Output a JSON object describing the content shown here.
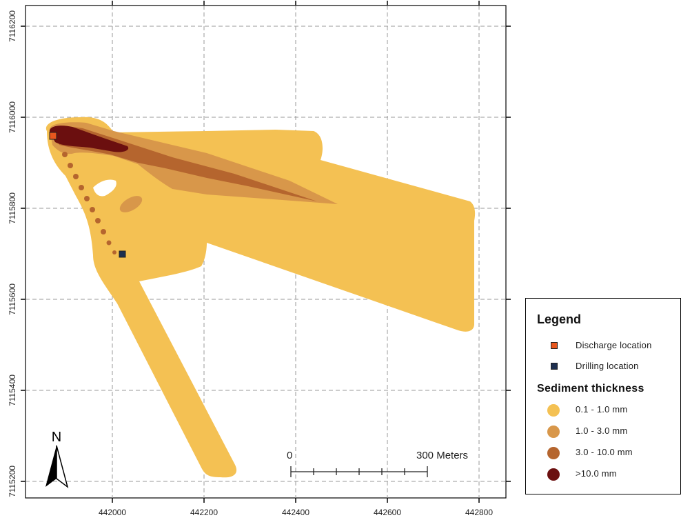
{
  "map": {
    "x_ticks": [
      "442000",
      "442200",
      "442400",
      "442600",
      "442800"
    ],
    "y_ticks": [
      "7116200",
      "7116000",
      "7115800",
      "7115600",
      "7115400",
      "7115200"
    ],
    "colors": {
      "thickness_0_1_1": "#f4c153",
      "thickness_1_3": "#d8974a",
      "thickness_3_10": "#b5652e",
      "thickness_gt_10": "#6b0f0f",
      "discharge": "#e8571e",
      "drilling": "#1d2f4f"
    }
  },
  "north_arrow": {
    "label": "N"
  },
  "scale_bar": {
    "start_label": "0",
    "end_label": "300 Meters"
  },
  "legend": {
    "title": "Legend",
    "items": [
      {
        "label": "Discharge location",
        "color": "#e8571e"
      },
      {
        "label": "Drilling location",
        "color": "#1d2f4f"
      }
    ],
    "subtitle": "Sediment thickness",
    "classes": [
      {
        "label": "0.1 - 1.0 mm",
        "color": "#f4c153"
      },
      {
        "label": "1.0 - 3.0 mm",
        "color": "#d8974a"
      },
      {
        "label": "3.0 - 10.0 mm",
        "color": "#b5652e"
      },
      {
        "label": ">10.0 mm",
        "color": "#6b0f0f"
      }
    ]
  }
}
